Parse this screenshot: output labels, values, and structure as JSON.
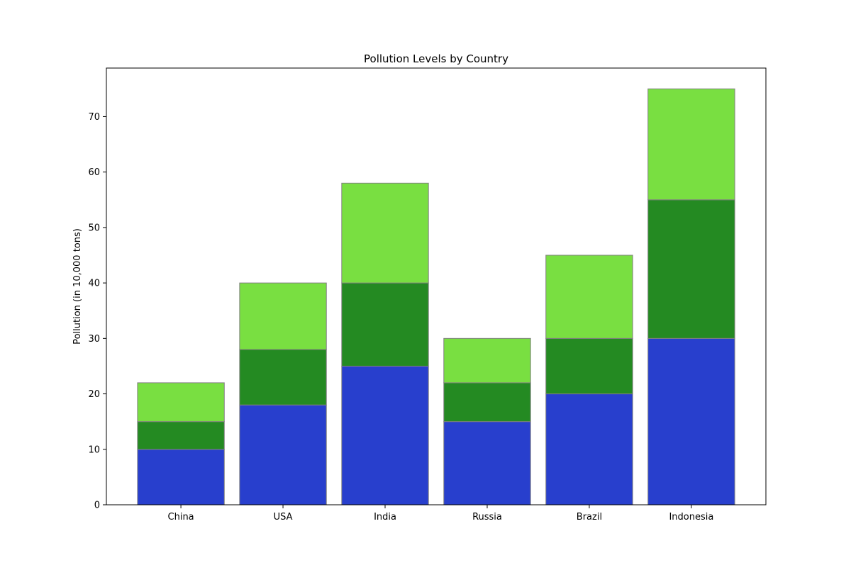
{
  "chart_data": {
    "type": "bar",
    "stacked": true,
    "title": "Pollution Levels by Country",
    "xlabel": "",
    "ylabel": "Pollution (in 10,000 tons)",
    "categories": [
      "China",
      "USA",
      "India",
      "Russia",
      "Brazil",
      "Indonesia"
    ],
    "series": [
      {
        "color": "#283fcd",
        "values": [
          10,
          18,
          25,
          15,
          20,
          30
        ]
      },
      {
        "color": "#248a22",
        "values": [
          5,
          10,
          15,
          7,
          10,
          25
        ]
      },
      {
        "color": "#79df41",
        "values": [
          7,
          12,
          18,
          8,
          15,
          20
        ]
      }
    ],
    "ylim": [
      0,
      78.75
    ],
    "yticks": [
      0,
      10,
      20,
      30,
      40,
      50,
      60,
      70
    ],
    "grid": false,
    "legend": "none",
    "bar_edge_color": "#808080"
  }
}
